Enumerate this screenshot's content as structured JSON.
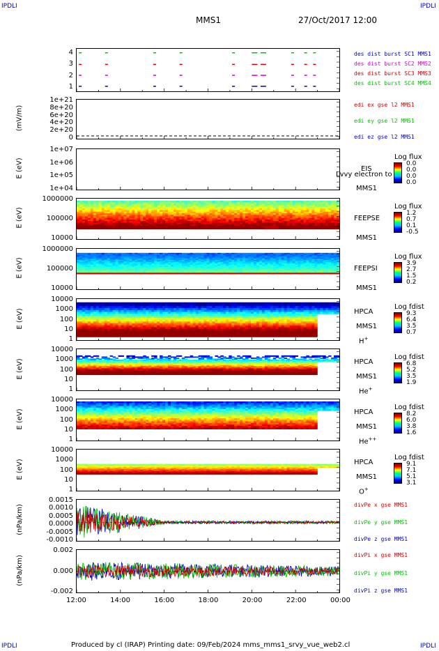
{
  "corner_marks": {
    "tl": "IPDLI",
    "tr": "IPDLI",
    "bl": "IPDLI",
    "br": "IPDLI"
  },
  "header": {
    "spacecraft": "MMS1",
    "datetime": "27/Oct/2017 12:00"
  },
  "footer": {
    "text": "Produced by cl (IRAP)   Printing date: 09/Feb/2024   mms_mms1_srvy_vue_web2.cl"
  },
  "x_axis": {
    "ticks": [
      "12:00",
      "14:00",
      "16:00",
      "18:00",
      "20:00",
      "22:00",
      "00:00"
    ]
  },
  "colors": {
    "red": "#d00000",
    "green": "#00c000",
    "blue": "#0000d0",
    "magenta": "#d000d0"
  },
  "chart_data": [
    {
      "type": "scatter",
      "panel": "burst",
      "yticks": [
        "4",
        "3",
        "2",
        "1"
      ],
      "legend": [
        {
          "text": "des dist burst SC1 MMS1",
          "color": "#0000d0"
        },
        {
          "text": "des dist burst SC2 MMS2",
          "color": "#d000d0"
        },
        {
          "text": "des dist burst SC3 MMS3",
          "color": "#d00000"
        },
        {
          "text": "des dist burst SC4 MMS4",
          "color": "#00c000"
        }
      ],
      "x_hours": [
        12.1,
        13.3,
        15.5,
        16.7,
        19.1,
        20.0,
        20.4,
        21.8,
        22.4,
        22.8
      ]
    },
    {
      "type": "line",
      "panel": "edi",
      "ylabel": "(mV/m)",
      "yticks": [
        "1e+21",
        "8e+20",
        "6e+20",
        "4e+20",
        "2e+20",
        "0"
      ],
      "legend": [
        {
          "text": "edi ex gse l2 MMS1",
          "color": "#d00000"
        },
        {
          "text": "edi ey gse l2 MMS1",
          "color": "#00c000"
        },
        {
          "text": "edi ez gse l2 MMS1",
          "color": "#0000d0"
        }
      ]
    },
    {
      "type": "heatmap",
      "panel": "eis",
      "ylabel": "E (eV)",
      "yticks": [
        "1e+07",
        "1e+06",
        "1e+05",
        "1e+04"
      ],
      "instrument": [
        "EIS",
        "MMS1"
      ],
      "overlay": "Lvvy electron to",
      "cbar_title": "Log flux",
      "cbar_values": [
        "0.0",
        "0.0",
        "0.0",
        "0.0"
      ]
    },
    {
      "type": "heatmap",
      "panel": "feepse",
      "ylabel": "E (eV)",
      "yticks": [
        "1000000",
        "100000",
        "10000"
      ],
      "instrument": [
        "FEEPSE",
        "MMS1"
      ],
      "cbar_title": "Log flux",
      "cbar_values": [
        "1.2",
        "0.7",
        "0.1",
        "-0.5"
      ]
    },
    {
      "type": "heatmap",
      "panel": "feepsi",
      "ylabel": "E (eV)",
      "yticks": [
        "1000000",
        "100000",
        "10000"
      ],
      "instrument": [
        "FEEPSI",
        "MMS1"
      ],
      "cbar_title": "Log flux",
      "cbar_values": [
        "3.9",
        "2.7",
        "1.5",
        "0.2"
      ]
    },
    {
      "type": "heatmap",
      "panel": "hpca_h",
      "ylabel": "E (eV)",
      "yticks": [
        "10000",
        "1000",
        "100",
        "10",
        "1"
      ],
      "instrument": [
        "HPCA",
        "MMS1",
        "H",
        "+"
      ],
      "cbar_title": "Log fdist",
      "cbar_values": [
        "9.3",
        "6.4",
        "3.5",
        "0.7"
      ]
    },
    {
      "type": "heatmap",
      "panel": "hpca_he",
      "ylabel": "E (eV)",
      "yticks": [
        "10000",
        "1000",
        "100",
        "10",
        "1"
      ],
      "instrument": [
        "HPCA",
        "MMS1",
        "He",
        "+"
      ],
      "cbar_title": "Log fdist",
      "cbar_values": [
        "6.8",
        "5.2",
        "3.5",
        "1.9"
      ]
    },
    {
      "type": "heatmap",
      "panel": "hpca_hepp",
      "ylabel": "E (eV)",
      "yticks": [
        "10000",
        "1000",
        "100",
        "10",
        "1"
      ],
      "instrument": [
        "HPCA",
        "MMS1",
        "He",
        "++"
      ],
      "cbar_title": "Log fdist",
      "cbar_values": [
        "8.2",
        "6.0",
        "3.8",
        "1.6"
      ]
    },
    {
      "type": "heatmap",
      "panel": "hpca_o",
      "ylabel": "E (eV)",
      "yticks": [
        "10000",
        "1000",
        "100",
        "10",
        "1"
      ],
      "instrument": [
        "HPCA",
        "MMS1",
        "O",
        "+"
      ],
      "cbar_title": "Log fdist",
      "cbar_values": [
        "9.1",
        "7.1",
        "5.1",
        "3.1"
      ]
    },
    {
      "type": "line",
      "panel": "divpe",
      "ylabel": "(nPa/km)",
      "yticks": [
        "0.0015",
        "0.0010",
        "0.0005",
        "0.0000",
        "-0.0005",
        "-0.0010"
      ],
      "legend": [
        {
          "text": "divPe x gse MMS1",
          "color": "#d00000"
        },
        {
          "text": "divPe y gse MMS1",
          "color": "#00c000"
        },
        {
          "text": "divPe z gse MMS1",
          "color": "#0000d0"
        }
      ]
    },
    {
      "type": "line",
      "panel": "divpi",
      "ylabel": "(nPa/km)",
      "yticks": [
        "0.002",
        "0.000",
        "-0.002"
      ],
      "legend": [
        {
          "text": "divPi x gse MMS1",
          "color": "#d00000"
        },
        {
          "text": "divPi y gse MMS1",
          "color": "#00c000"
        },
        {
          "text": "divPi z gse MMS1",
          "color": "#0000d0"
        }
      ]
    }
  ]
}
